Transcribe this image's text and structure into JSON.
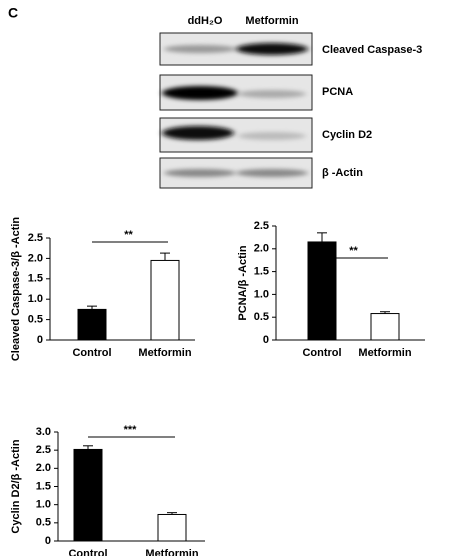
{
  "panel_label": "C",
  "blot": {
    "columns": [
      "ddH₂O",
      "Metformin"
    ],
    "rows": [
      "Cleaved Caspase-3",
      "PCNA",
      "Cyclin D2",
      "β -Actin"
    ]
  },
  "chart_data": [
    {
      "type": "bar",
      "y_label": "Cleaved Caspase-3/β -Actin",
      "categories": [
        "Control",
        "Metformin"
      ],
      "values": [
        0.75,
        1.95
      ],
      "errors": [
        0.08,
        0.18
      ],
      "colors": [
        "#000000",
        "#ffffff"
      ],
      "ylim": [
        0,
        2.5
      ],
      "yticks": [
        0,
        0.5,
        {
          "value": 1,
          "label": "1.0"
        },
        1.5,
        {
          "value": 2,
          "label": "2.0"
        },
        2.5
      ],
      "significance": "**"
    },
    {
      "type": "bar",
      "y_label": "PCNA/β -Actin",
      "categories": [
        "Control",
        "Metformin"
      ],
      "values": [
        2.15,
        0.58
      ],
      "errors": [
        0.2,
        0.04
      ],
      "colors": [
        "#000000",
        "#ffffff"
      ],
      "ylim": [
        0,
        2.5
      ],
      "yticks": [
        0,
        0.5,
        {
          "value": 1,
          "label": "1.0"
        },
        1.5,
        {
          "value": 2,
          "label": "2.0"
        },
        2.5
      ],
      "significance": "**"
    },
    {
      "type": "bar",
      "y_label": "Cyclin D2/β -Actin",
      "categories": [
        "Control",
        "Metformin"
      ],
      "values": [
        2.52,
        0.73
      ],
      "errors": [
        0.1,
        0.05
      ],
      "colors": [
        "#000000",
        "#ffffff"
      ],
      "ylim": [
        0,
        3
      ],
      "yticks": [
        0,
        0.5,
        {
          "value": 1,
          "label": "1.0"
        },
        1.5,
        {
          "value": 2,
          "label": "2.0"
        },
        2.5,
        {
          "value": 3,
          "label": "3.0"
        }
      ],
      "significance": "***"
    }
  ]
}
